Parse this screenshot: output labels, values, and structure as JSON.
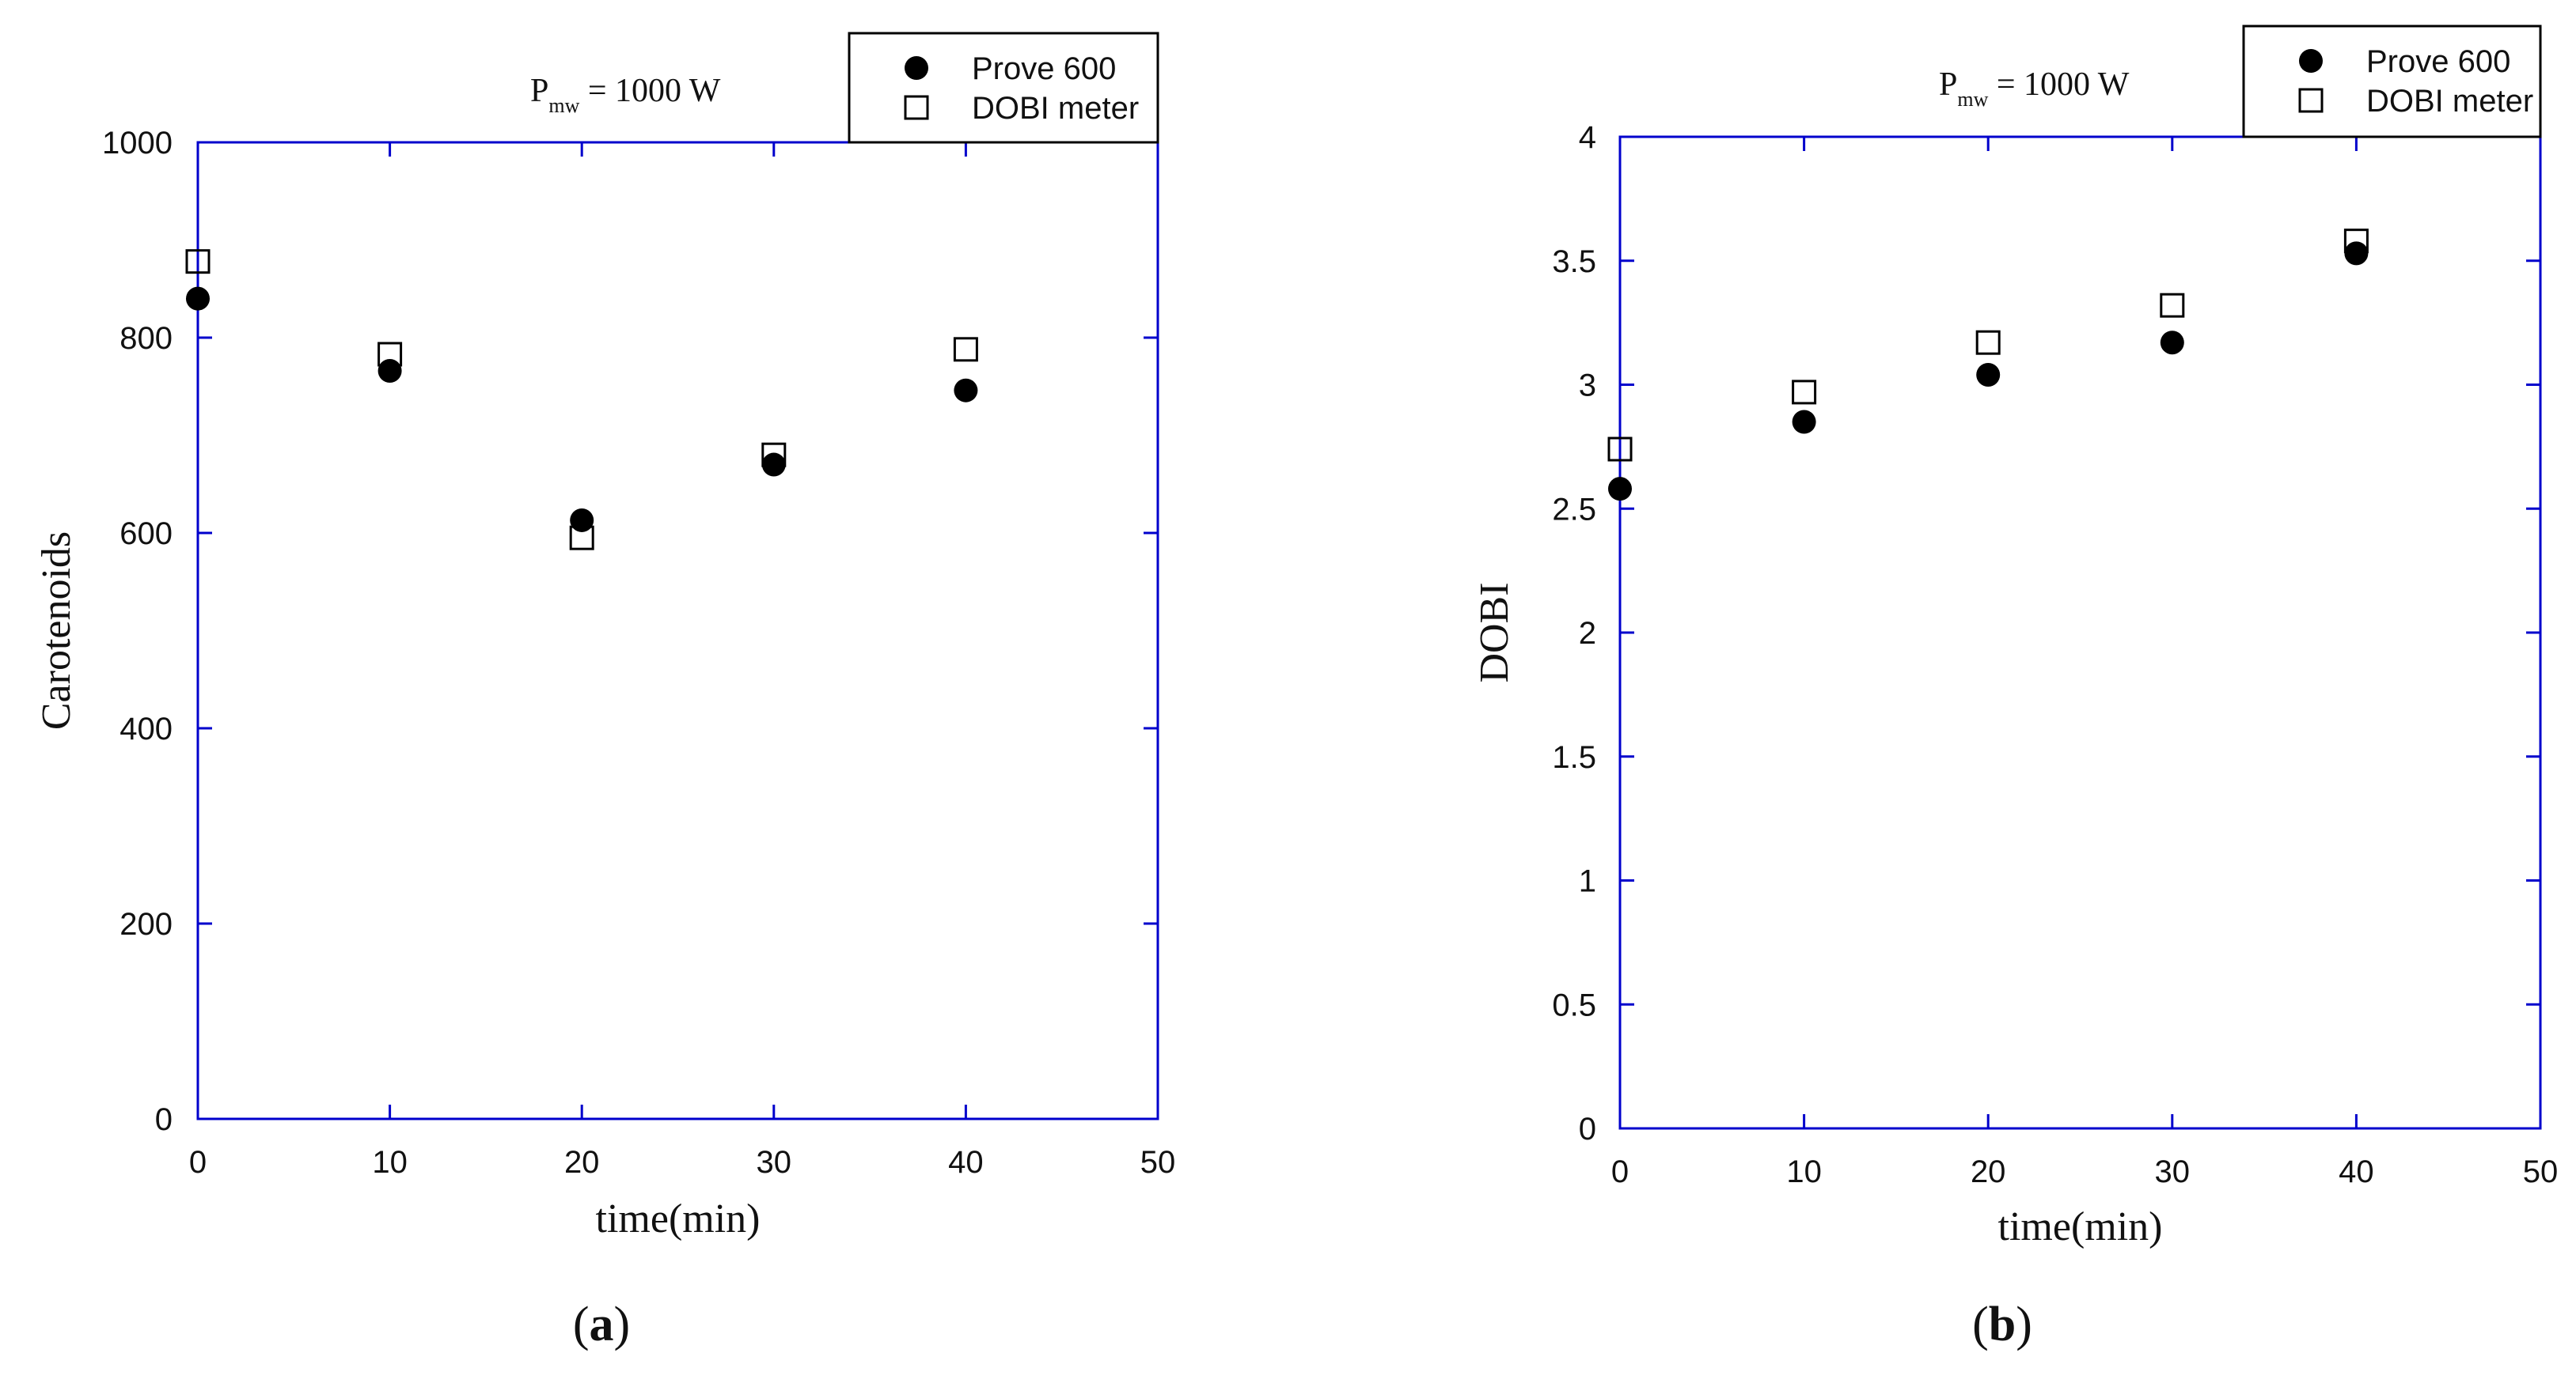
{
  "chart_data": [
    {
      "panel_label_prefix": "(",
      "panel_label_letter": "a",
      "panel_label_suffix": ")",
      "type": "scatter",
      "xlabel": "time(min)",
      "ylabel": "Carotenoids",
      "xlim": [
        0,
        50
      ],
      "ylim": [
        0,
        1000
      ],
      "xticks": [
        0,
        10,
        20,
        30,
        40,
        50
      ],
      "yticks": [
        0,
        200,
        400,
        600,
        800,
        1000
      ],
      "annotation": {
        "symbol": "P",
        "subscript": "mw",
        "rest": " = 1000 W"
      },
      "legend_position": "top-right",
      "series": [
        {
          "name": "Prove 600",
          "marker": "filled-circle",
          "x": [
            0,
            10,
            20,
            30,
            40
          ],
          "y": [
            840,
            766,
            613,
            670,
            746
          ]
        },
        {
          "name": "DOBI meter",
          "marker": "open-square",
          "x": [
            0,
            10,
            20,
            30,
            40
          ],
          "y": [
            878,
            783,
            595,
            680,
            788
          ]
        }
      ]
    },
    {
      "panel_label_prefix": "(",
      "panel_label_letter": "b",
      "panel_label_suffix": ")",
      "type": "scatter",
      "xlabel": "time(min)",
      "ylabel": "DOBI",
      "xlim": [
        0,
        50
      ],
      "ylim": [
        0,
        4
      ],
      "xticks": [
        0,
        10,
        20,
        30,
        40,
        50
      ],
      "yticks": [
        0,
        0.5,
        1,
        1.5,
        2,
        2.5,
        3,
        3.5,
        4
      ],
      "annotation": {
        "symbol": "P",
        "subscript": "mw",
        "rest": " = 1000 W"
      },
      "legend_position": "top-right",
      "series": [
        {
          "name": "Prove 600",
          "marker": "filled-circle",
          "x": [
            0,
            10,
            20,
            30,
            40
          ],
          "y": [
            2.58,
            2.85,
            3.04,
            3.17,
            3.53
          ]
        },
        {
          "name": "DOBI meter",
          "marker": "open-square",
          "x": [
            0,
            10,
            20,
            30,
            40
          ],
          "y": [
            2.74,
            2.97,
            3.17,
            3.32,
            3.58
          ]
        }
      ]
    }
  ],
  "colors": {
    "axis": "#0000cc",
    "marker": "#000000",
    "text": "#111111"
  }
}
